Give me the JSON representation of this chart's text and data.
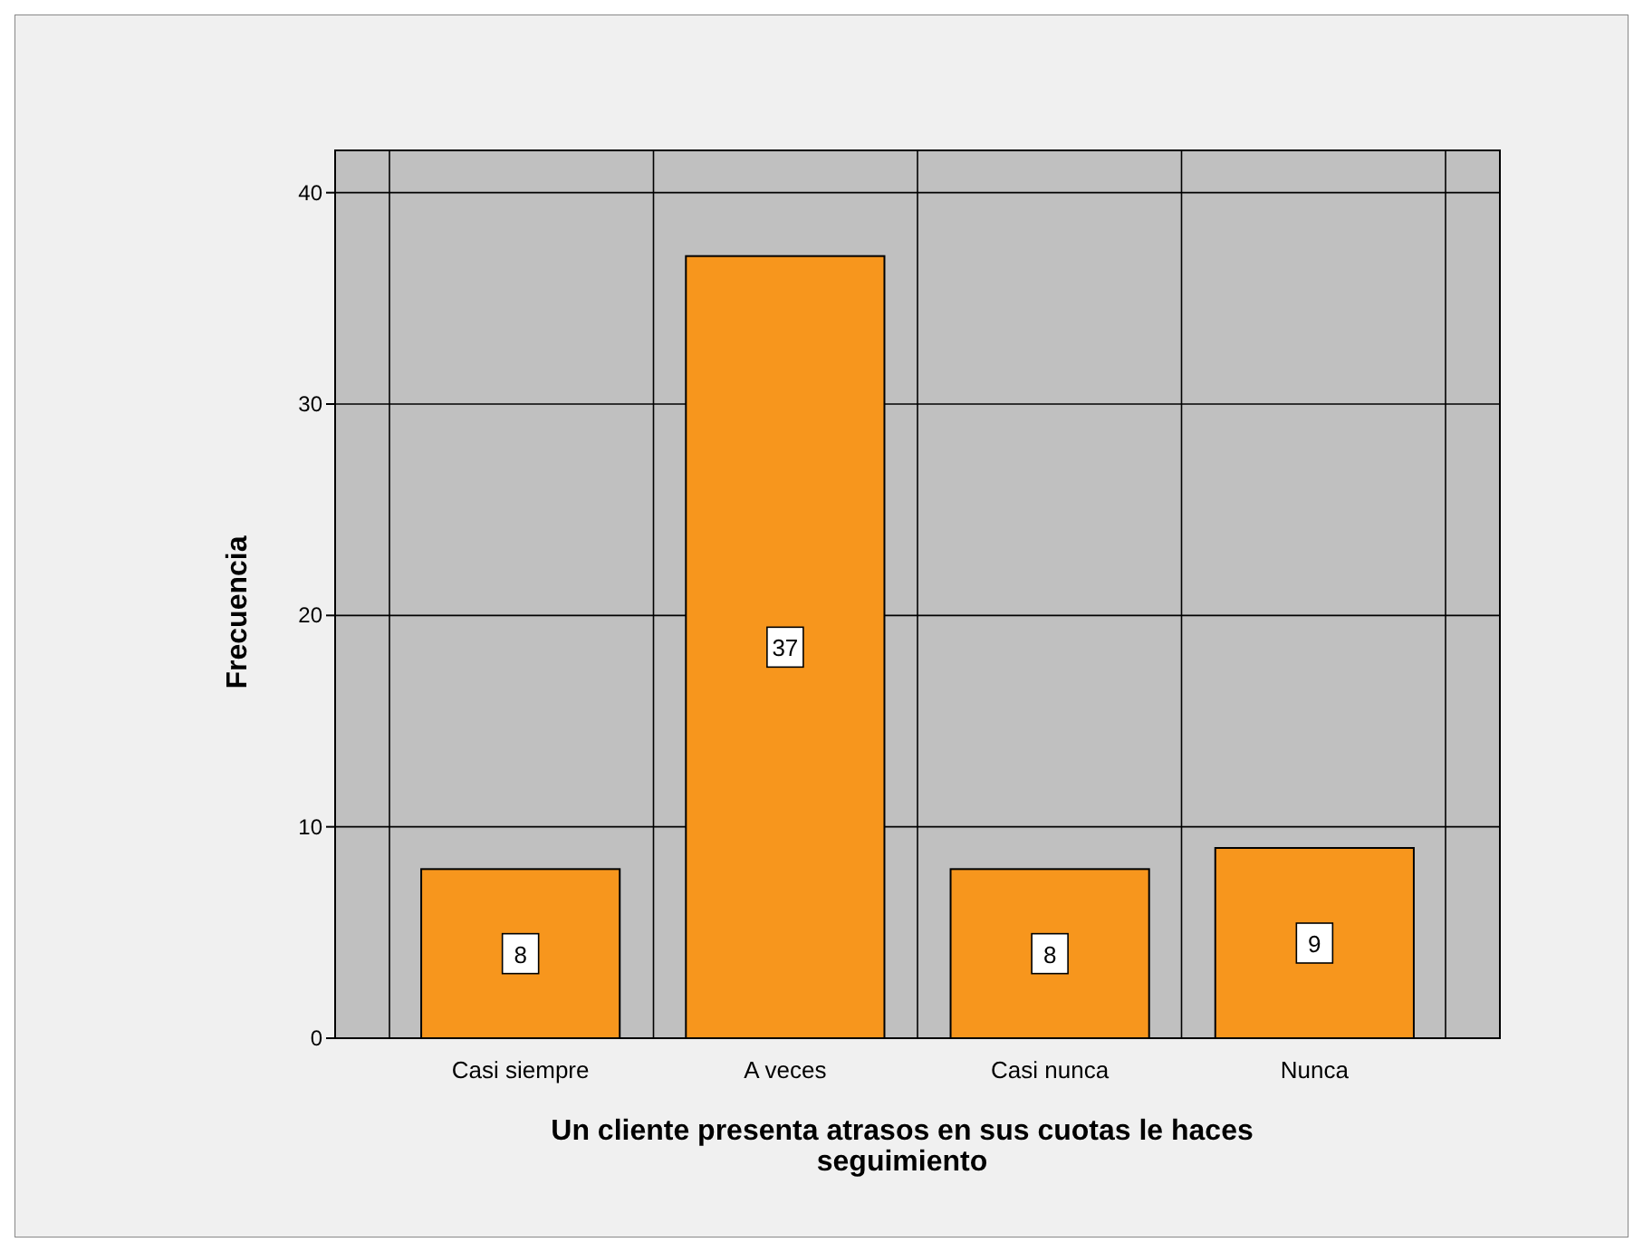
{
  "chart_data": {
    "type": "bar",
    "xlabel": "Un cliente presenta atrasos en sus cuotas le haces seguimiento",
    "ylabel": "Frecuencia",
    "categories": [
      "Casi siempre",
      "A veces",
      "Casi nunca",
      "Nunca"
    ],
    "values": [
      8,
      37,
      8,
      9
    ],
    "color": "#f7961d",
    "ylim": [
      0,
      42
    ],
    "yticks": [
      0,
      10,
      20,
      30,
      40
    ],
    "grid": true,
    "data_labels": true
  }
}
